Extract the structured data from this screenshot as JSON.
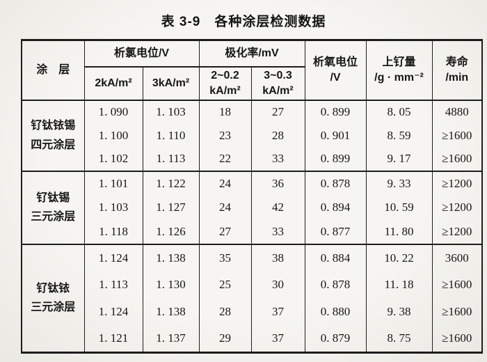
{
  "title": "表 3-9　各种涂层检测数据",
  "table": {
    "header": {
      "coating": "涂　层",
      "cl_potential": "析氯电位/V",
      "polarization": "极化率/mV",
      "o2_potential": "析氧电位\n/V",
      "ru_loading": "上钌量\n/g · mm⁻²",
      "life": "寿命\n/min",
      "sub_2ka": "2kA/m²",
      "sub_3ka": "3kA/m²",
      "sub_2_02": "2~0.2\nkA/m²",
      "sub_3_03": "3~0.3\nkA/m²"
    },
    "groups": [
      {
        "label": "钌钛铱锡\n四元涂层",
        "rows": [
          [
            "1. 090",
            "1. 103",
            "18",
            "27",
            "0. 899",
            "8. 05",
            "4880"
          ],
          [
            "1. 100",
            "1. 110",
            "23",
            "28",
            "0. 901",
            "8. 59",
            "≥1600"
          ],
          [
            "1. 102",
            "1. 113",
            "22",
            "33",
            "0. 899",
            "9. 17",
            "≥1600"
          ]
        ]
      },
      {
        "label": "钌钛锡\n三元涂层",
        "rows": [
          [
            "1. 101",
            "1. 122",
            "24",
            "36",
            "0. 878",
            "9. 33",
            "≥1200"
          ],
          [
            "1. 103",
            "1. 127",
            "24",
            "42",
            "0. 894",
            "10. 59",
            "≥1200"
          ],
          [
            "1. 118",
            "1. 126",
            "27",
            "33",
            "0. 877",
            "11. 80",
            "≥1200"
          ]
        ]
      },
      {
        "label": "钌钛铱\n三元涂层",
        "rows": [
          [
            "1. 124",
            "1. 138",
            "35",
            "38",
            "0. 884",
            "10. 22",
            "3600"
          ],
          [
            "1. 113",
            "1. 130",
            "25",
            "30",
            "0. 878",
            "11. 18",
            "≥1600"
          ],
          [
            "1. 124",
            "1. 138",
            "28",
            "37",
            "0. 880",
            "9. 38",
            "≥1600"
          ],
          [
            "1. 121",
            "1. 137",
            "29",
            "37",
            "0. 879",
            "8. 75",
            "≥1600"
          ]
        ]
      }
    ]
  },
  "colors": {
    "paper": "#f1efe9",
    "ink": "#1b1b1b",
    "border": "#1c1c1c"
  }
}
